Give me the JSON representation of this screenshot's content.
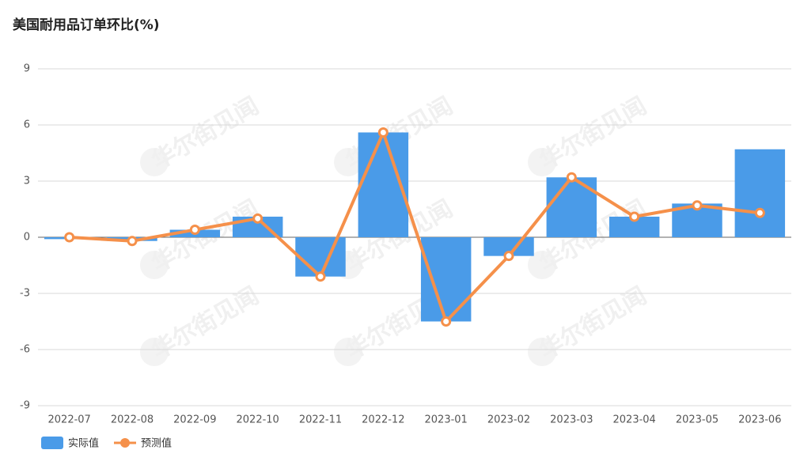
{
  "chart_data": {
    "type": "bar",
    "title": "美国耐用品订单环比(%)",
    "watermark": "华尔街见闻",
    "categories": [
      "2022-07",
      "2022-08",
      "2022-09",
      "2022-10",
      "2022-11",
      "2022-12",
      "2023-01",
      "2023-02",
      "2023-03",
      "2023-04",
      "2023-05",
      "2023-06"
    ],
    "series": [
      {
        "name": "实际值",
        "type": "bar",
        "color": "#4a9be8",
        "values": [
          -0.1,
          -0.2,
          0.4,
          1.1,
          -2.1,
          5.6,
          -4.5,
          -1.0,
          3.2,
          1.1,
          1.8,
          4.7
        ]
      },
      {
        "name": "预测值",
        "type": "line",
        "color": "#f5904a",
        "values": [
          0.0,
          -0.2,
          0.4,
          1.0,
          -2.1,
          5.6,
          -4.5,
          -1.0,
          3.2,
          1.1,
          1.7,
          1.3
        ]
      }
    ],
    "ylim": [
      -9,
      9
    ],
    "yticks": [
      -9,
      -6,
      -3,
      0,
      3,
      6,
      9
    ],
    "grid": true,
    "legend": "bottom-left"
  }
}
